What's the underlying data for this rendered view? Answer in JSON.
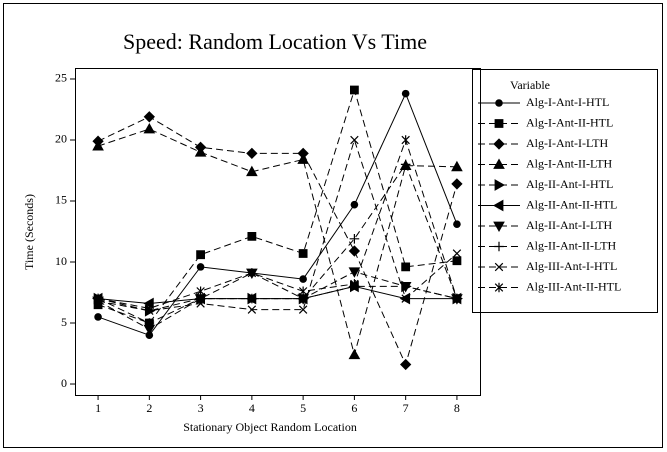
{
  "chart_data": {
    "type": "line",
    "title": "Speed: Random Location Vs Time",
    "x_label": "Stationary Object Random Location",
    "y_label": "Time (Seconds)",
    "legend_title": "Variable",
    "x": [
      1,
      2,
      3,
      4,
      5,
      6,
      7,
      8
    ],
    "xlim": [
      0.55,
      8.45
    ],
    "xticks": [
      1,
      2,
      3,
      4,
      5,
      6,
      7,
      8
    ],
    "ylim": [
      -0.9,
      25.9
    ],
    "yticks": [
      0,
      5,
      10,
      15,
      20,
      25
    ],
    "legend": "right",
    "series": [
      {
        "name": "Alg-I-Ant-I-HTL",
        "color": "#000000",
        "marker": "circle",
        "dash": "solid",
        "values": [
          5.5,
          4,
          9.6,
          9.1,
          8.6,
          14.7,
          23.8,
          13.1
        ]
      },
      {
        "name": "Alg-I-Ant-II-HTL",
        "color": "#000000",
        "marker": "square",
        "dash": "dashed",
        "values": [
          6.5,
          5,
          10.6,
          12.1,
          10.7,
          24.1,
          9.6,
          10.1
        ]
      },
      {
        "name": "Alg-I-Ant-I-LTH",
        "color": "#000000",
        "marker": "diamond",
        "dash": "dashed",
        "values": [
          19.9,
          21.9,
          19.4,
          18.9,
          18.9,
          10.9,
          1.6,
          16.4
        ]
      },
      {
        "name": "Alg-I-Ant-II-LTH",
        "color": "#000000",
        "marker": "triangle-up",
        "dash": "dashed",
        "values": [
          19.5,
          20.9,
          19.0,
          17.4,
          18.4,
          2.4,
          17.9,
          17.8
        ]
      },
      {
        "name": "Alg-II-Ant-I-HTL",
        "color": "#000000",
        "marker": "triangle-right",
        "dash": "dashed",
        "values": [
          7,
          6,
          7,
          7,
          7,
          8,
          8,
          7
        ]
      },
      {
        "name": "Alg-II-Ant-II-HTL",
        "color": "#000000",
        "marker": "triangle-left",
        "dash": "solid",
        "values": [
          7,
          6.6,
          7,
          7,
          7,
          8,
          7,
          7
        ]
      },
      {
        "name": "Alg-II-Ant-I-LTH",
        "color": "#000000",
        "marker": "triangle-down",
        "dash": "dashed",
        "values": [
          6.8,
          4.5,
          7,
          9.1,
          7,
          9.2,
          8,
          7
        ]
      },
      {
        "name": "Alg-II-Ant-II-LTH",
        "color": "#000000",
        "marker": "plus",
        "dash": "dashed",
        "values": [
          7,
          5,
          7,
          7,
          7,
          11.9,
          18,
          7
        ]
      },
      {
        "name": "Alg-III-Ant-I-HTL",
        "color": "#000000",
        "marker": "x",
        "dash": "dashed",
        "values": [
          6.8,
          6,
          6.6,
          6.1,
          6.1,
          20,
          7,
          10.7
        ]
      },
      {
        "name": "Alg-III-Ant-II-HTL",
        "color": "#000000",
        "marker": "asterisk",
        "dash": "dashed",
        "values": [
          7,
          6.2,
          7.6,
          9.1,
          7.6,
          8.2,
          20,
          7
        ]
      }
    ]
  }
}
